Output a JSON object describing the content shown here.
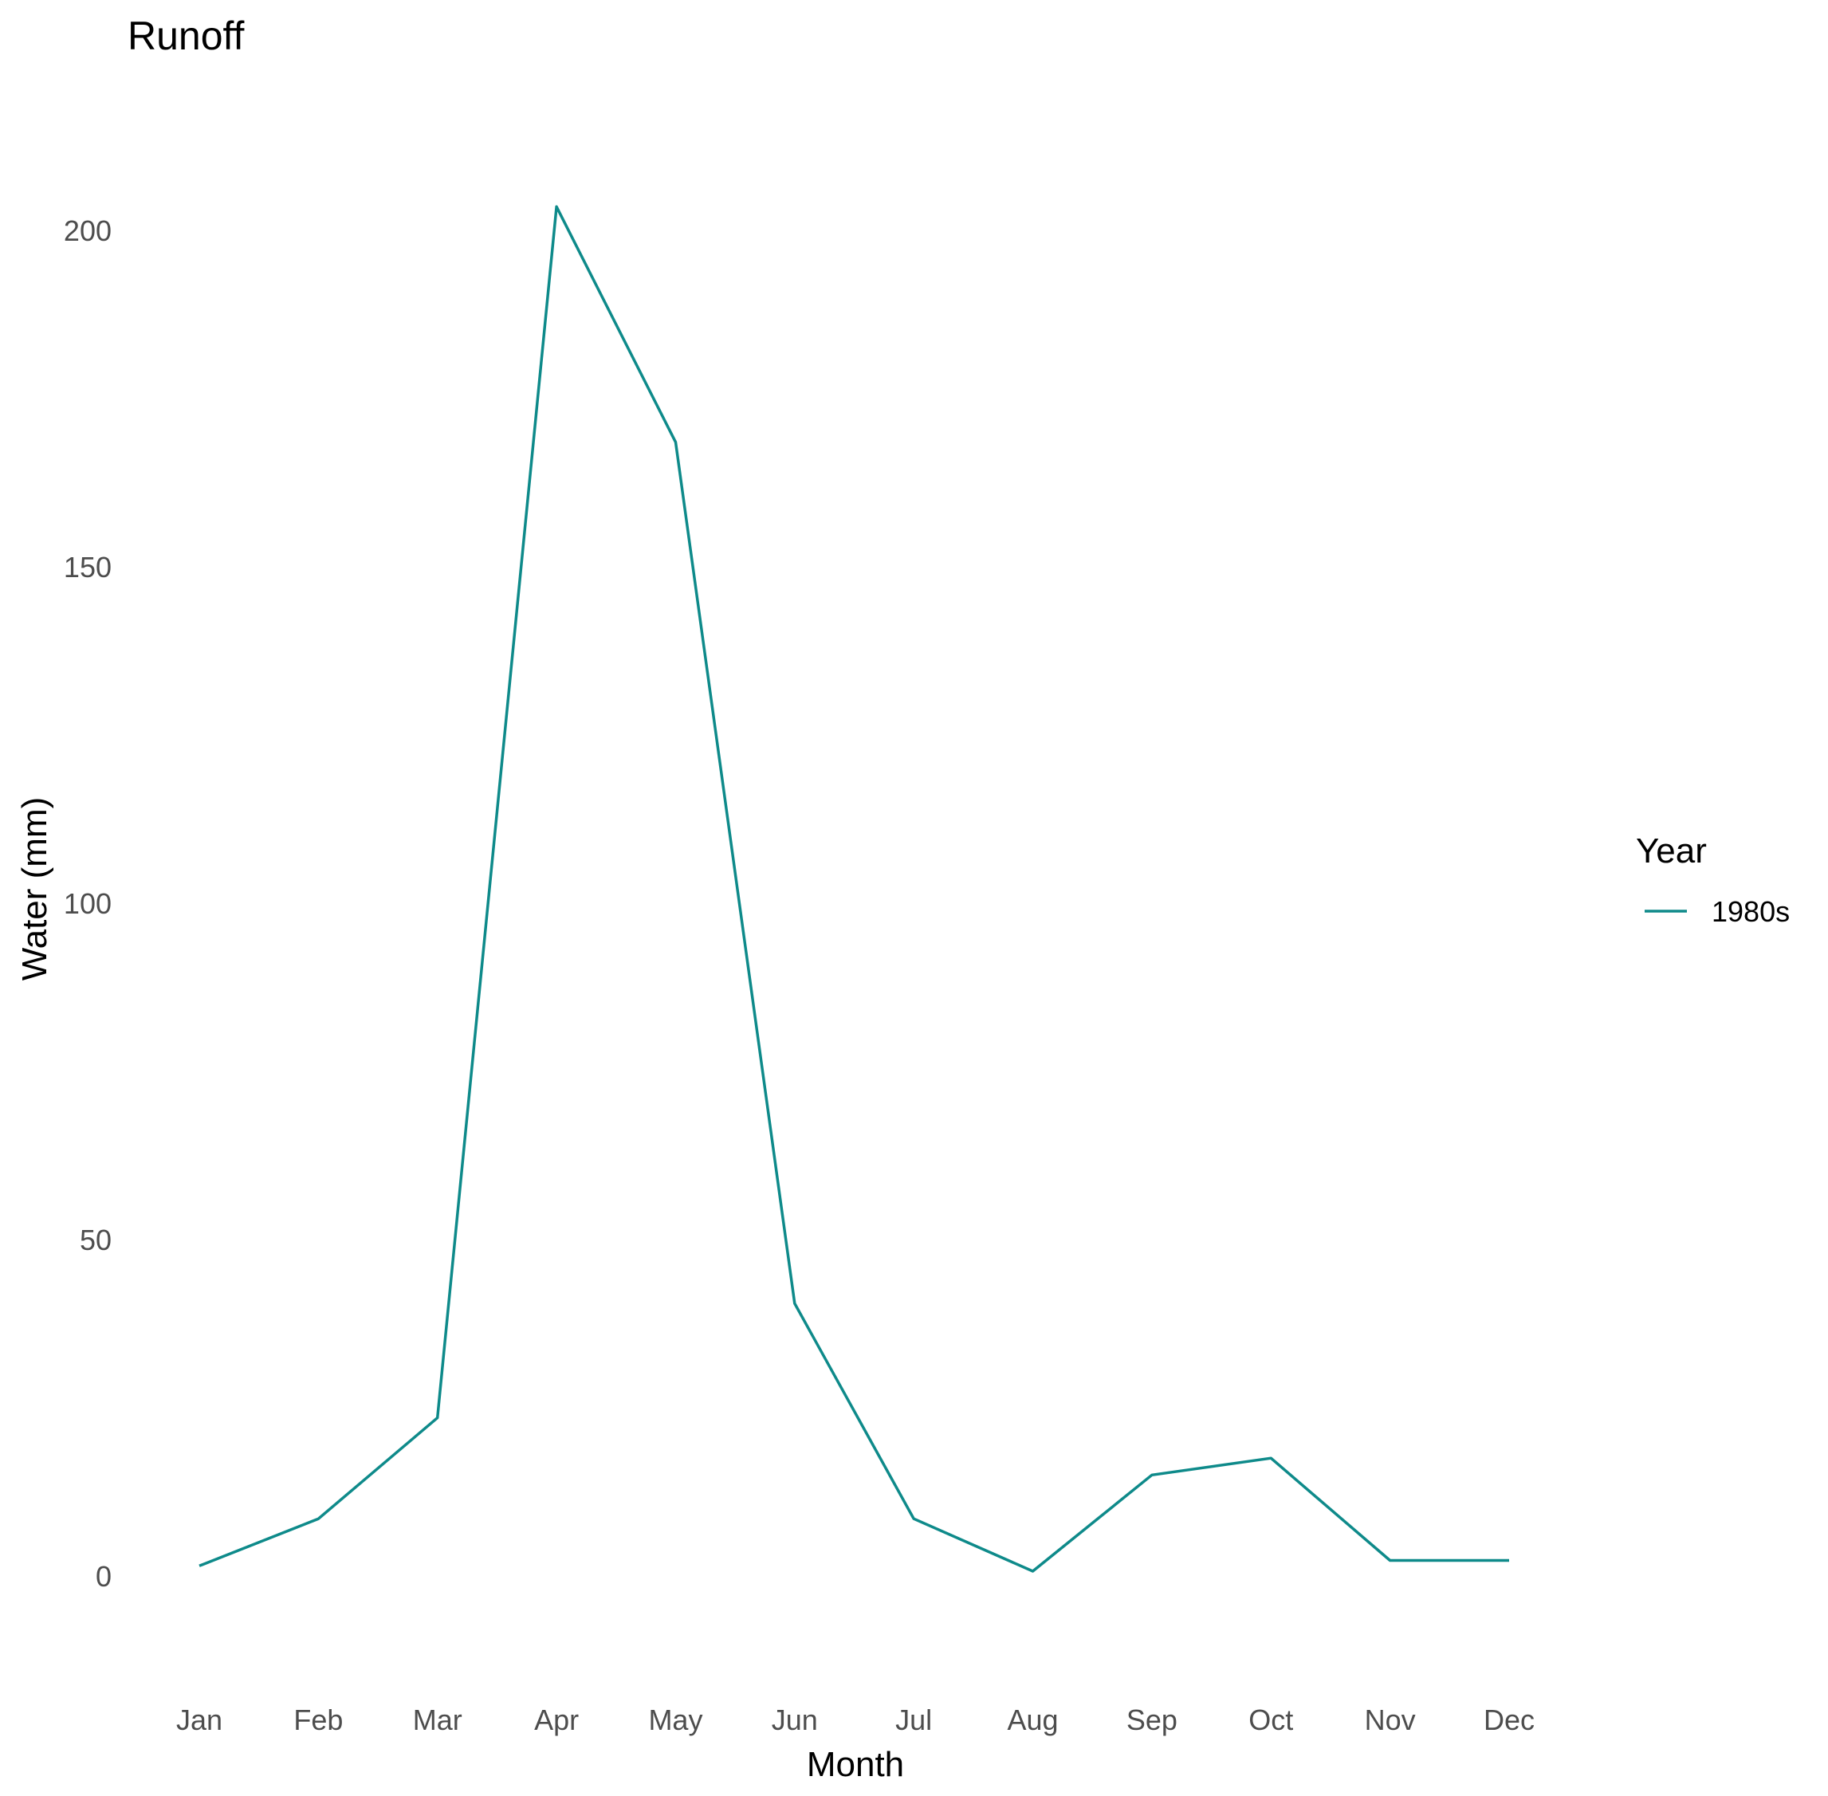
{
  "chart_data": {
    "type": "line",
    "title": "Runoff",
    "xlabel": "Month",
    "ylabel": "Water (mm)",
    "categories": [
      "Jan",
      "Feb",
      "Mar",
      "Apr",
      "May",
      "Jun",
      "Jul",
      "Aug",
      "Sep",
      "Oct",
      "Nov",
      "Dec"
    ],
    "series": [
      {
        "name": "1980s",
        "color": "#0e8a8a",
        "values": [
          1.5,
          8.5,
          23.5,
          203.5,
          168.5,
          40.5,
          8.5,
          0.7,
          15,
          17.5,
          2.3,
          2.3
        ]
      }
    ],
    "ylim": [
      -7,
      211
    ],
    "yticks": [
      0,
      50,
      100,
      150,
      200
    ],
    "grid": false,
    "legend": {
      "title": "Year",
      "position": "right"
    }
  }
}
